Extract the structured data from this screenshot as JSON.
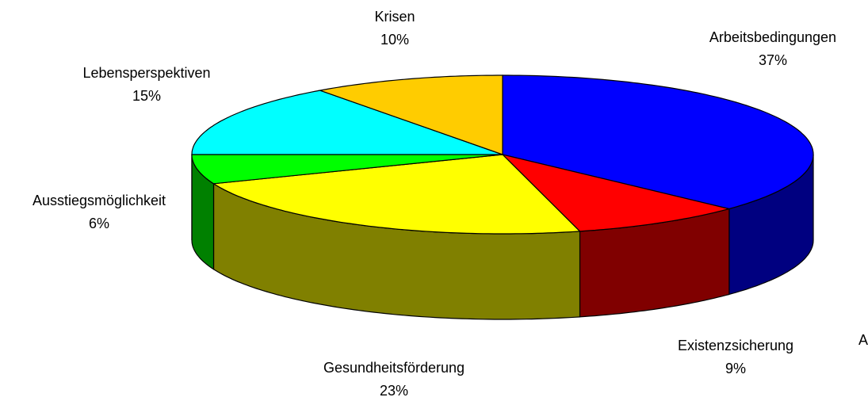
{
  "chart_data": {
    "type": "pie3d",
    "categories": [
      "Arbeitsbedingungen",
      "Existenzsicherung",
      "Gesundheitsförderung",
      "Ausstiegsmöglichkeit",
      "Lebensperspektiven",
      "Krisen"
    ],
    "values": [
      37,
      9,
      23,
      6,
      15,
      10
    ],
    "value_labels": [
      "37%",
      "9%",
      "23%",
      "6%",
      "15%",
      "10%"
    ],
    "colors": [
      "#0000ff",
      "#ff0000",
      "#ffff00",
      "#00ff00",
      "#00ffff",
      "#ffcc00"
    ],
    "side_colors": [
      "#000080",
      "#800000",
      "#808000",
      "#008000",
      "#008080",
      "#806600"
    ],
    "annotation": "A"
  }
}
